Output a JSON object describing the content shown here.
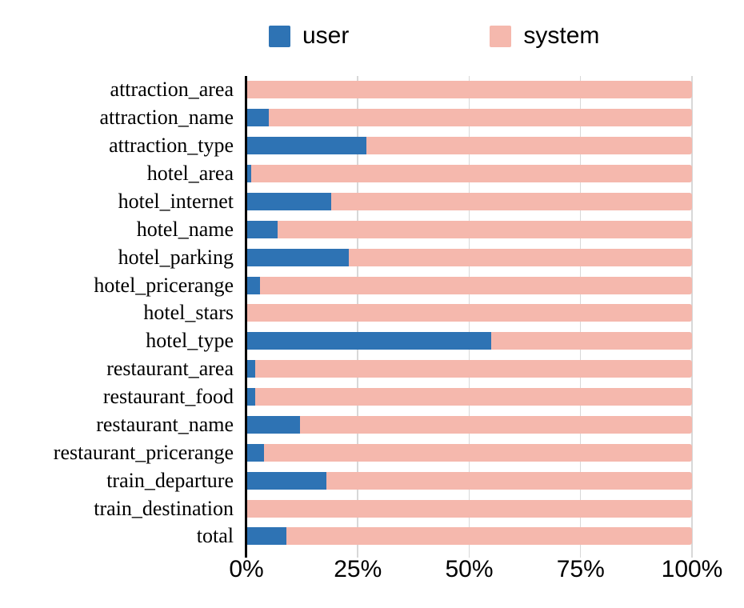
{
  "legend": {
    "items": [
      {
        "label": "user",
        "color": "#2e73b4"
      },
      {
        "label": "system",
        "color": "#f5b8ad"
      }
    ]
  },
  "chart_data": {
    "type": "bar",
    "orientation": "horizontal",
    "stacked": true,
    "title": "",
    "xlabel": "",
    "ylabel": "",
    "xlim": [
      0,
      100
    ],
    "grid": "vertical",
    "legend_position": "top",
    "x_ticks": [
      "0%",
      "25%",
      "50%",
      "75%",
      "100%"
    ],
    "x_tick_values": [
      0,
      25,
      50,
      75,
      100
    ],
    "categories": [
      "attraction_area",
      "attraction_name",
      "attraction_type",
      "hotel_area",
      "hotel_internet",
      "hotel_name",
      "hotel_parking",
      "hotel_pricerange",
      "hotel_stars",
      "hotel_type",
      "restaurant_area",
      "restaurant_food",
      "restaurant_name",
      "restaurant_pricerange",
      "train_departure",
      "train_destination",
      "total"
    ],
    "series": [
      {
        "name": "user",
        "color": "#2e73b4",
        "values": [
          0,
          5,
          27,
          1,
          19,
          7,
          23,
          3,
          0,
          55,
          2,
          2,
          12,
          4,
          18,
          0,
          9
        ]
      },
      {
        "name": "system",
        "color": "#f5b8ad",
        "values": [
          100,
          95,
          73,
          99,
          81,
          93,
          77,
          97,
          100,
          45,
          98,
          98,
          88,
          96,
          82,
          100,
          91
        ]
      }
    ]
  }
}
